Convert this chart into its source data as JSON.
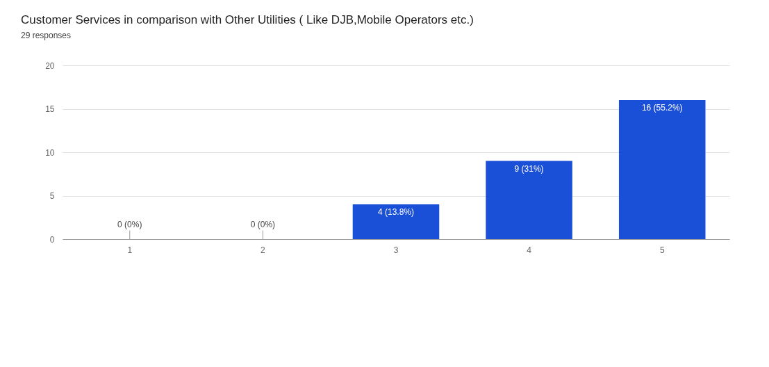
{
  "chart_data": {
    "type": "bar",
    "title": "Customer Services in comparison with Other Utilities ( Like DJB,Mobile Operators etc.)",
    "subtitle": "29 responses",
    "categories": [
      "1",
      "2",
      "3",
      "4",
      "5"
    ],
    "values": [
      0,
      0,
      4,
      9,
      16
    ],
    "value_labels": [
      "0 (0%)",
      "0 (0%)",
      "4 (13.8%)",
      "9 (31%)",
      "16 (55.2%)"
    ],
    "color": "#1a4fd8",
    "ylim": [
      0,
      20
    ],
    "yticks": [
      0,
      5,
      10,
      15,
      20
    ],
    "grid": "y"
  }
}
